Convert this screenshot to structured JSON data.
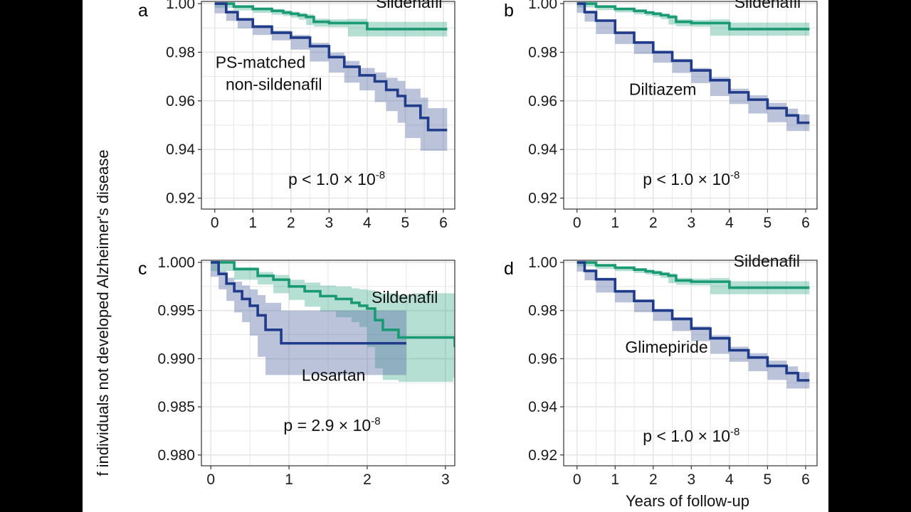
{
  "colors": {
    "sildenafil": "#1a9a72",
    "sildenafil_band": "#1a9a72",
    "comparator": "#1f3b8a",
    "comparator_band": "#5a6fa8",
    "grid": "#e6e6e6",
    "frame": "#333333"
  },
  "figure": {
    "ylabel": "f individuals not developed Alzheimer's disease",
    "xlabel": "Years of follow-up"
  },
  "chart_data": [
    {
      "type": "line",
      "panel": "a",
      "xlim": [
        -0.35,
        6.3
      ],
      "ylim": [
        0.9155,
        1.0009
      ],
      "xticks": [
        0,
        1,
        2,
        3,
        4,
        5,
        6
      ],
      "yticks": [
        1.0,
        0.98,
        0.96,
        0.94,
        0.92
      ],
      "ytick_labels": [
        "1.00",
        "0.98",
        "0.96",
        "0.94",
        "0.92"
      ],
      "annotations": [
        {
          "text": "Sildenafil",
          "x": 5.1,
          "y": 0.9982
        },
        {
          "text": "PS-matched",
          "x": 1.2,
          "y": 0.9735
        },
        {
          "text": "non-sildenafil",
          "x": 1.55,
          "y": 0.9645
        },
        {
          "text": "p < 1.0 × 10",
          "x": 3.2,
          "y": 0.9255,
          "sup": "-8"
        }
      ],
      "series": [
        {
          "key": "sildenafil",
          "x": [
            0,
            0.5,
            1.0,
            1.5,
            1.8,
            2.0,
            2.2,
            2.4,
            2.6,
            3.0,
            3.5,
            4.0,
            6.1
          ],
          "y": [
            1.0,
            0.9988,
            0.9978,
            0.997,
            0.9963,
            0.9958,
            0.9952,
            0.9945,
            0.9925,
            0.992,
            0.992,
            0.9895,
            0.9895
          ],
          "lower": [
            1.0,
            0.9983,
            0.9972,
            0.9962,
            0.9954,
            0.9949,
            0.9942,
            0.9934,
            0.9912,
            0.9905,
            0.9903,
            0.9865,
            0.9865
          ],
          "upper": [
            1.0,
            0.9993,
            0.9984,
            0.9978,
            0.9972,
            0.9967,
            0.9962,
            0.9956,
            0.9938,
            0.9935,
            0.9937,
            0.9925,
            0.9925
          ]
        },
        {
          "key": "comparator",
          "x": [
            0,
            0.3,
            0.6,
            1.0,
            1.5,
            2.0,
            2.5,
            3.0,
            3.4,
            3.8,
            4.2,
            4.5,
            4.8,
            5.0,
            5.4,
            5.6,
            6.1
          ],
          "y": [
            1.0,
            0.9965,
            0.9935,
            0.9905,
            0.988,
            0.986,
            0.9825,
            0.978,
            0.974,
            0.9705,
            0.968,
            0.9645,
            0.962,
            0.958,
            0.953,
            0.948,
            0.948
          ],
          "lower": [
            1.0,
            0.996,
            0.9929,
            0.9898,
            0.9871,
            0.9849,
            0.9811,
            0.9762,
            0.9716,
            0.9675,
            0.9643,
            0.9595,
            0.9558,
            0.951,
            0.9447,
            0.9395,
            0.9395
          ],
          "upper": [
            1.0,
            0.997,
            0.9941,
            0.9912,
            0.9889,
            0.9871,
            0.9839,
            0.9798,
            0.9764,
            0.9735,
            0.9717,
            0.9695,
            0.9682,
            0.965,
            0.9613,
            0.957,
            0.957
          ]
        }
      ]
    },
    {
      "type": "line",
      "panel": "b",
      "xlim": [
        -0.35,
        6.3
      ],
      "ylim": [
        0.9155,
        1.0009
      ],
      "xticks": [
        0,
        1,
        2,
        3,
        4,
        5,
        6
      ],
      "yticks": [
        1.0,
        0.98,
        0.96,
        0.94,
        0.92
      ],
      "ytick_labels": [
        "1.00",
        "0.98",
        "0.96",
        "0.94",
        "0.92"
      ],
      "annotations": [
        {
          "text": "Sildenafil",
          "x": 5.0,
          "y": 0.9982
        },
        {
          "text": "Diltiazem",
          "x": 2.25,
          "y": 0.9625
        },
        {
          "text": "p < 1.0 × 10",
          "x": 3.0,
          "y": 0.9255,
          "sup": "-8"
        }
      ],
      "series": [
        {
          "key": "sildenafil",
          "x": [
            0,
            0.5,
            1.0,
            1.5,
            1.8,
            2.0,
            2.2,
            2.4,
            2.6,
            3.0,
            3.5,
            4.0,
            6.1
          ],
          "y": [
            1.0,
            0.9988,
            0.9978,
            0.997,
            0.9963,
            0.9958,
            0.9952,
            0.9945,
            0.9925,
            0.992,
            0.992,
            0.9895,
            0.9895
          ],
          "lower": [
            1.0,
            0.9984,
            0.9973,
            0.9964,
            0.9956,
            0.995,
            0.9944,
            0.9936,
            0.9914,
            0.9907,
            0.9905,
            0.9868,
            0.9868
          ],
          "upper": [
            1.0,
            0.9992,
            0.9983,
            0.9976,
            0.997,
            0.9966,
            0.996,
            0.9954,
            0.9936,
            0.9933,
            0.9935,
            0.9922,
            0.9922
          ]
        },
        {
          "key": "comparator",
          "x": [
            0,
            0.2,
            0.5,
            1.0,
            1.5,
            2.0,
            2.5,
            3.0,
            3.5,
            4.0,
            4.5,
            5.0,
            5.5,
            5.8,
            6.1
          ],
          "y": [
            1.0,
            0.9965,
            0.993,
            0.988,
            0.984,
            0.98,
            0.9765,
            0.9725,
            0.9685,
            0.9635,
            0.9605,
            0.957,
            0.954,
            0.951,
            0.951
          ],
          "lower": [
            1.0,
            0.9962,
            0.9926,
            0.9875,
            0.9834,
            0.9793,
            0.9757,
            0.9715,
            0.9673,
            0.962,
            0.9587,
            0.9548,
            0.9512,
            0.9476,
            0.9476
          ],
          "upper": [
            1.0,
            0.9968,
            0.9934,
            0.9885,
            0.9846,
            0.9807,
            0.9773,
            0.9735,
            0.9697,
            0.965,
            0.9623,
            0.9592,
            0.9568,
            0.9544,
            0.9544
          ]
        }
      ]
    },
    {
      "type": "line",
      "panel": "c",
      "xlim": [
        -0.12,
        3.12
      ],
      "ylim": [
        0.97888,
        1.00022
      ],
      "xticks": [
        0,
        1,
        2,
        3
      ],
      "yticks": [
        1.0,
        0.995,
        0.99,
        0.985,
        0.98
      ],
      "ytick_labels": [
        "1.000",
        "0.995",
        "0.990",
        "0.985",
        "0.980"
      ],
      "annotations": [
        {
          "text": "Sildenafil",
          "x": 2.48,
          "y": 0.9958
        },
        {
          "text": "Losartan",
          "x": 1.57,
          "y": 0.9877
        },
        {
          "text": "p = 2.9 × 10",
          "x": 1.55,
          "y": 0.9825,
          "sup": "-8"
        }
      ],
      "series": [
        {
          "key": "sildenafil",
          "x": [
            0,
            0.3,
            0.6,
            0.8,
            1.0,
            1.2,
            1.4,
            1.6,
            1.8,
            1.9,
            2.0,
            2.1,
            2.2,
            2.4,
            2.6,
            3.1,
            3.12
          ],
          "y": [
            1.0,
            0.9993,
            0.9986,
            0.9982,
            0.9975,
            0.997,
            0.9965,
            0.9962,
            0.9958,
            0.9955,
            0.9952,
            0.994,
            0.993,
            0.9922,
            0.9922,
            0.9922,
            0.9912
          ],
          "lower": [
            1.0,
            0.9991,
            0.9982,
            0.9977,
            0.9968,
            0.9961,
            0.9954,
            0.9949,
            0.9943,
            0.9938,
            0.9933,
            0.9912,
            0.989,
            0.9878,
            0.9876,
            0.9876,
            0.988
          ],
          "upper": [
            1.0,
            0.9995,
            0.999,
            0.9987,
            0.9982,
            0.9979,
            0.9976,
            0.9975,
            0.9973,
            0.9972,
            0.9971,
            0.9968,
            0.9968,
            0.9966,
            0.9968,
            0.9968,
            0.9944
          ]
        },
        {
          "key": "comparator",
          "x": [
            0,
            0.1,
            0.2,
            0.3,
            0.4,
            0.5,
            0.6,
            0.7,
            0.9,
            1.0,
            1.5,
            2.0,
            2.5
          ],
          "y": [
            1.0,
            0.9988,
            0.9978,
            0.997,
            0.9962,
            0.9955,
            0.9945,
            0.993,
            0.9916,
            0.9916,
            0.9916,
            0.9916,
            0.9916
          ],
          "lower": [
            1.0,
            0.9985,
            0.9972,
            0.996,
            0.9948,
            0.9938,
            0.9924,
            0.9902,
            0.9883,
            0.9883,
            0.9883,
            0.9883,
            0.9883
          ],
          "upper": [
            1.0,
            0.9991,
            0.9984,
            0.998,
            0.9976,
            0.9972,
            0.9966,
            0.9958,
            0.995,
            0.995,
            0.995,
            0.995,
            0.995
          ]
        }
      ]
    },
    {
      "type": "line",
      "panel": "d",
      "xlim": [
        -0.35,
        6.3
      ],
      "ylim": [
        0.9155,
        1.0009
      ],
      "xticks": [
        0,
        1,
        2,
        3,
        4,
        5,
        6
      ],
      "yticks": [
        1.0,
        0.98,
        0.96,
        0.94,
        0.92
      ],
      "ytick_labels": [
        "1.00",
        "0.98",
        "0.96",
        "0.94",
        "0.92"
      ],
      "annotations": [
        {
          "text": "Sildenafil",
          "x": 4.98,
          "y": 0.9982
        },
        {
          "text": "Glimepiride",
          "x": 2.35,
          "y": 0.9625
        },
        {
          "text": "p < 1.0 × 10",
          "x": 3.0,
          "y": 0.9255,
          "sup": "-8"
        }
      ],
      "series": [
        {
          "key": "sildenafil",
          "x": [
            0,
            0.5,
            1.0,
            1.5,
            1.8,
            2.0,
            2.2,
            2.4,
            2.6,
            3.0,
            3.5,
            4.0,
            6.1
          ],
          "y": [
            1.0,
            0.9988,
            0.9978,
            0.997,
            0.9963,
            0.9958,
            0.9952,
            0.9945,
            0.9925,
            0.992,
            0.992,
            0.9895,
            0.9895
          ],
          "lower": [
            1.0,
            0.9984,
            0.9973,
            0.9964,
            0.9956,
            0.995,
            0.9944,
            0.9936,
            0.9914,
            0.9907,
            0.9905,
            0.9868,
            0.9868
          ],
          "upper": [
            1.0,
            0.9992,
            0.9983,
            0.9976,
            0.997,
            0.9966,
            0.996,
            0.9954,
            0.9936,
            0.9933,
            0.9935,
            0.9922,
            0.9922
          ]
        },
        {
          "key": "comparator",
          "x": [
            0,
            0.2,
            0.5,
            1.0,
            1.5,
            2.0,
            2.5,
            3.0,
            3.5,
            4.0,
            4.5,
            5.0,
            5.5,
            5.8,
            6.1
          ],
          "y": [
            1.0,
            0.9965,
            0.993,
            0.988,
            0.984,
            0.98,
            0.9765,
            0.9725,
            0.9685,
            0.9635,
            0.9605,
            0.957,
            0.954,
            0.951,
            0.951
          ],
          "lower": [
            1.0,
            0.9962,
            0.9926,
            0.9875,
            0.9834,
            0.9793,
            0.9757,
            0.9715,
            0.9673,
            0.962,
            0.9587,
            0.9548,
            0.9512,
            0.9476,
            0.9476
          ],
          "upper": [
            1.0,
            0.9968,
            0.9934,
            0.9885,
            0.9846,
            0.9807,
            0.9773,
            0.9735,
            0.9697,
            0.965,
            0.9623,
            0.9592,
            0.9568,
            0.9544,
            0.9544
          ]
        }
      ]
    }
  ]
}
